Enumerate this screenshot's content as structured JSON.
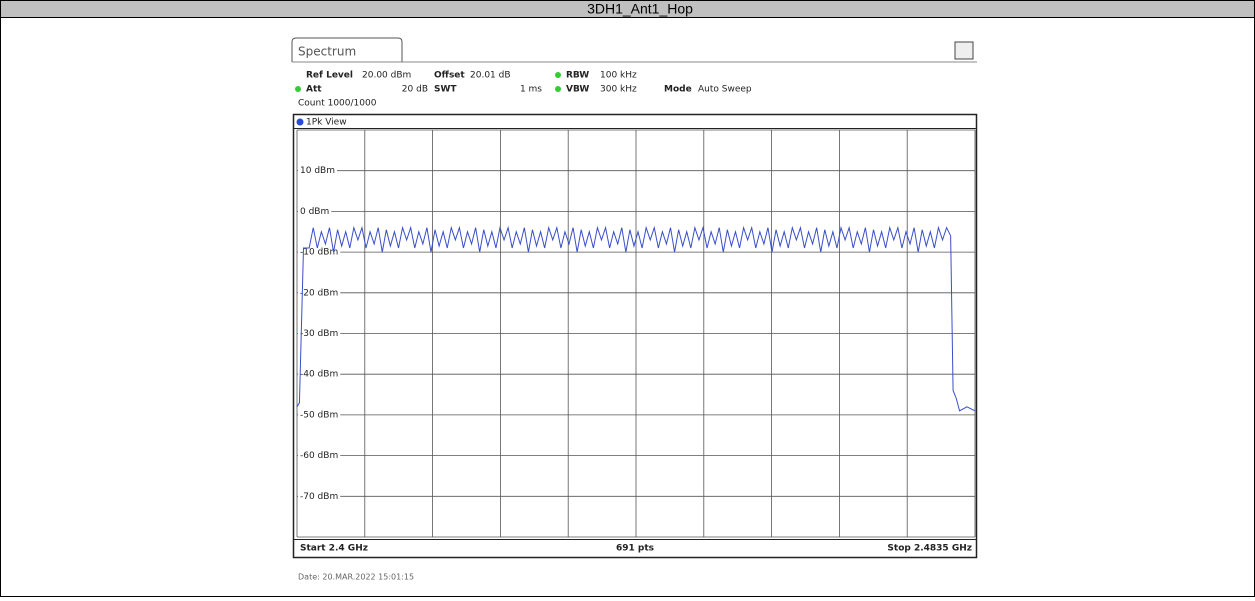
{
  "chart_data": {
    "type": "line",
    "title": "3DH1_Ant1_Hop",
    "tab": "Spectrum",
    "settings": [
      "Ref Level",
      "20.00 dBm",
      "Offset",
      "20.01 dB",
      "RBW",
      "100 kHz",
      "Att",
      "20 dB",
      "SWT",
      "1 ms",
      "VBW",
      "300 kHz",
      "Mode",
      "Auto Sweep",
      "Count 1000/1000"
    ],
    "view": "1Pk View",
    "start_label": "Start 2.4 GHz",
    "points_label": "691 pts",
    "stop_label": "Stop 2.4835 GHz",
    "date": "Date: 20.MAR.2022  15:01:15",
    "xlim": [
      2.4,
      2.4835
    ],
    "xticks": [
      2.4,
      2.40835,
      2.4167,
      2.42505,
      2.4334,
      2.44175,
      2.4501,
      2.45845,
      2.4668,
      2.47515,
      2.4835
    ],
    "ylim": [
      -80,
      20
    ],
    "yticks": [
      {
        "value": 20,
        "label": ""
      },
      {
        "value": 10,
        "label": "10 dBm"
      },
      {
        "value": 0,
        "label": "0 dBm"
      },
      {
        "value": -10,
        "label": "-10 dBm"
      },
      {
        "value": -20,
        "label": "-20 dBm"
      },
      {
        "value": -30,
        "label": "-30 dBm"
      },
      {
        "value": -40,
        "label": "-40 dBm"
      },
      {
        "value": -50,
        "label": "-50 dBm"
      },
      {
        "value": -60,
        "label": "-60 dBm"
      },
      {
        "value": -70,
        "label": "-70 dBm"
      },
      {
        "value": -80,
        "label": ""
      }
    ],
    "grid": true,
    "x": [
      2.4,
      2.4003,
      2.4008,
      2.4015,
      2.402,
      2.4025,
      2.403,
      2.4035,
      2.404,
      2.4045,
      2.405,
      2.4055,
      2.406,
      2.4065,
      2.407,
      2.4075,
      2.408,
      2.4085,
      2.409,
      2.4095,
      2.41,
      2.4105,
      2.411,
      2.4115,
      2.412,
      2.4125,
      2.413,
      2.4135,
      2.414,
      2.4145,
      2.415,
      2.4155,
      2.416,
      2.4165,
      2.417,
      2.4175,
      2.418,
      2.4185,
      2.419,
      2.4195,
      2.42,
      2.4205,
      2.421,
      2.4215,
      2.422,
      2.4225,
      2.423,
      2.4235,
      2.424,
      2.4245,
      2.425,
      2.4255,
      2.426,
      2.4265,
      2.427,
      2.4275,
      2.428,
      2.4285,
      2.429,
      2.4295,
      2.43,
      2.4305,
      2.431,
      2.4315,
      2.432,
      2.4325,
      2.433,
      2.4335,
      2.434,
      2.4345,
      2.435,
      2.4355,
      2.436,
      2.4365,
      2.437,
      2.4375,
      2.438,
      2.4385,
      2.439,
      2.4395,
      2.44,
      2.4405,
      2.441,
      2.4415,
      2.442,
      2.4425,
      2.443,
      2.4435,
      2.444,
      2.4445,
      2.445,
      2.4455,
      2.446,
      2.4465,
      2.447,
      2.4475,
      2.448,
      2.4485,
      2.449,
      2.4495,
      2.45,
      2.4505,
      2.451,
      2.4515,
      2.452,
      2.4525,
      2.453,
      2.4535,
      2.454,
      2.4545,
      2.455,
      2.4555,
      2.456,
      2.4565,
      2.457,
      2.4575,
      2.458,
      2.4585,
      2.459,
      2.4595,
      2.46,
      2.4605,
      2.461,
      2.4615,
      2.462,
      2.4625,
      2.463,
      2.4635,
      2.464,
      2.4645,
      2.465,
      2.4655,
      2.466,
      2.4665,
      2.467,
      2.4675,
      2.468,
      2.4685,
      2.469,
      2.4695,
      2.47,
      2.4705,
      2.471,
      2.4715,
      2.472,
      2.4725,
      2.473,
      2.4735,
      2.474,
      2.4745,
      2.475,
      2.4755,
      2.476,
      2.4765,
      2.477,
      2.4775,
      2.478,
      2.4785,
      2.479,
      2.4795,
      2.48,
      2.4805,
      2.4808,
      2.4812,
      2.4816,
      2.4825,
      2.4835
    ],
    "series": [
      {
        "name": "1Pk View",
        "color": "#3a4fc8",
        "values": [
          -48,
          -47,
          -9,
          -9,
          -4,
          -9,
          -5,
          -8,
          -4,
          -10,
          -4.5,
          -8.5,
          -5,
          -9,
          -4,
          -7,
          -4,
          -9,
          -5,
          -8,
          -4,
          -10,
          -4.5,
          -8.5,
          -5,
          -9,
          -4,
          -7,
          -4,
          -9,
          -5,
          -8,
          -4,
          -10,
          -4.5,
          -8.5,
          -5,
          -9,
          -4,
          -7,
          -4,
          -9,
          -5,
          -8,
          -4,
          -10,
          -4.5,
          -8.5,
          -5,
          -9,
          -4,
          -7,
          -4,
          -9,
          -5,
          -8,
          -4,
          -10,
          -4.5,
          -8.5,
          -5,
          -9,
          -4,
          -7,
          -4,
          -9,
          -5,
          -8,
          -4,
          -10,
          -4.5,
          -8.5,
          -5,
          -9,
          -4,
          -7,
          -4,
          -9,
          -5,
          -8,
          -4,
          -10,
          -4.5,
          -8.5,
          -5,
          -9,
          -4,
          -7,
          -4,
          -9,
          -5,
          -8,
          -4,
          -10,
          -4.5,
          -8.5,
          -5,
          -9,
          -4,
          -7,
          -4,
          -9,
          -5,
          -8,
          -4,
          -10,
          -4.5,
          -8.5,
          -5,
          -9,
          -4,
          -7,
          -4,
          -9,
          -5,
          -8,
          -4,
          -10,
          -4.5,
          -8.5,
          -5,
          -9,
          -4,
          -7,
          -4,
          -9,
          -5,
          -8,
          -4,
          -10,
          -4.5,
          -8.5,
          -5,
          -9,
          -4,
          -7,
          -4,
          -9,
          -5,
          -8,
          -4,
          -10,
          -4.5,
          -8.5,
          -5,
          -9,
          -4,
          -7,
          -4,
          -9,
          -5,
          -8,
          -4,
          -10,
          -4.5,
          -8.5,
          -5,
          -9,
          -4,
          -7,
          -4,
          -6,
          -44,
          -46,
          -49,
          -48,
          -49
        ]
      }
    ]
  }
}
